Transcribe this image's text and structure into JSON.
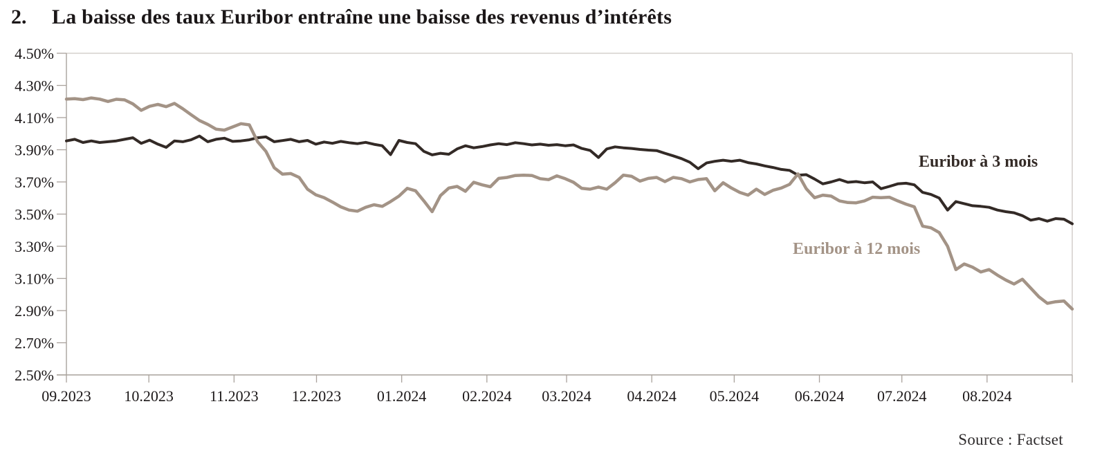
{
  "title": {
    "number": "2.",
    "text": "La baisse des taux Euribor entraîne une baisse des revenus d’intérêts"
  },
  "source": "Source : Factset",
  "annotations": {
    "label_3m": "Euribor à 3 mois",
    "label_12m": "Euribor à 12 mois"
  },
  "colors": {
    "series_3m": "#332a26",
    "series_12m": "#a39386",
    "axis": "#a9a29c",
    "border": "#ccc7c2",
    "text": "#1b1718"
  },
  "chart_data": {
    "type": "line",
    "title": "La baisse des taux Euribor entraîne une baisse des revenus d’intérêts",
    "legend_position": "inline-labels",
    "grid": false,
    "y_axis": {
      "tick_labels": [
        "4.50%",
        "4.30%",
        "4.10%",
        "3.90%",
        "3.70%",
        "3.50%",
        "3.30%",
        "3.10%",
        "2.90%",
        "2.70%",
        "2.50%"
      ],
      "tick_values": [
        4.5,
        4.3,
        4.1,
        3.9,
        3.7,
        3.5,
        3.3,
        3.1,
        2.9,
        2.7,
        2.5
      ],
      "min": 2.5,
      "max": 4.5
    },
    "x_axis": {
      "tick_labels": [
        "09.2023",
        "10.2023",
        "11.2023",
        "12.2023",
        "01.2024",
        "02.2024",
        "03.2024",
        "04.2024",
        "05.2024",
        "06.2024",
        "07.2024",
        "08.2024"
      ],
      "month_day_offsets": [
        0,
        30,
        61,
        91,
        122,
        153,
        182,
        213,
        243,
        274,
        304,
        335,
        366
      ],
      "span_days": 366
    },
    "sampling": {
      "points": 122,
      "step_days": 3,
      "start": "09.2023",
      "end": "08.2024"
    },
    "series": [
      {
        "name": "Euribor à 3 mois",
        "color": "#332a26",
        "unit": "%",
        "values": [
          3.955,
          3.965,
          3.945,
          3.955,
          3.945,
          3.95,
          3.955,
          3.965,
          3.975,
          3.94,
          3.96,
          3.935,
          3.915,
          3.955,
          3.95,
          3.962,
          3.985,
          3.95,
          3.965,
          3.972,
          3.952,
          3.955,
          3.962,
          3.975,
          3.98,
          3.95,
          3.957,
          3.965,
          3.95,
          3.958,
          3.935,
          3.948,
          3.94,
          3.952,
          3.944,
          3.938,
          3.946,
          3.934,
          3.925,
          3.87,
          3.958,
          3.945,
          3.938,
          3.89,
          3.868,
          3.878,
          3.872,
          3.905,
          3.925,
          3.912,
          3.92,
          3.93,
          3.938,
          3.932,
          3.944,
          3.938,
          3.93,
          3.935,
          3.928,
          3.932,
          3.925,
          3.93,
          3.908,
          3.896,
          3.852,
          3.905,
          3.918,
          3.912,
          3.908,
          3.902,
          3.898,
          3.895,
          3.878,
          3.862,
          3.845,
          3.822,
          3.782,
          3.818,
          3.828,
          3.835,
          3.828,
          3.835,
          3.82,
          3.812,
          3.8,
          3.79,
          3.778,
          3.772,
          3.742,
          3.745,
          3.718,
          3.688,
          3.7,
          3.715,
          3.698,
          3.702,
          3.695,
          3.7,
          3.658,
          3.672,
          3.688,
          3.692,
          3.682,
          3.635,
          3.622,
          3.6,
          3.525,
          3.578,
          3.565,
          3.552,
          3.548,
          3.542,
          3.525,
          3.515,
          3.508,
          3.49,
          3.462,
          3.472,
          3.456,
          3.472,
          3.468,
          3.44
        ]
      },
      {
        "name": "Euribor à 12 mois",
        "color": "#a39386",
        "unit": "%",
        "values": [
          4.215,
          4.218,
          4.212,
          4.222,
          4.215,
          4.2,
          4.214,
          4.21,
          4.185,
          4.145,
          4.17,
          4.182,
          4.168,
          4.188,
          4.155,
          4.118,
          4.082,
          4.058,
          4.028,
          4.022,
          4.042,
          4.062,
          4.055,
          3.95,
          3.89,
          3.788,
          3.748,
          3.752,
          3.728,
          3.655,
          3.62,
          3.602,
          3.575,
          3.545,
          3.525,
          3.518,
          3.542,
          3.558,
          3.548,
          3.578,
          3.612,
          3.66,
          3.645,
          3.582,
          3.515,
          3.615,
          3.662,
          3.672,
          3.642,
          3.698,
          3.682,
          3.67,
          3.722,
          3.728,
          3.74,
          3.742,
          3.74,
          3.72,
          3.714,
          3.738,
          3.72,
          3.698,
          3.66,
          3.655,
          3.668,
          3.655,
          3.695,
          3.742,
          3.735,
          3.705,
          3.722,
          3.728,
          3.702,
          3.728,
          3.72,
          3.7,
          3.715,
          3.72,
          3.645,
          3.695,
          3.662,
          3.635,
          3.618,
          3.655,
          3.622,
          3.648,
          3.662,
          3.685,
          3.75,
          3.658,
          3.602,
          3.618,
          3.612,
          3.582,
          3.572,
          3.57,
          3.582,
          3.605,
          3.602,
          3.605,
          3.582,
          3.562,
          3.545,
          3.425,
          3.415,
          3.385,
          3.3,
          3.155,
          3.19,
          3.17,
          3.14,
          3.155,
          3.12,
          3.09,
          3.065,
          3.095,
          3.04,
          2.985,
          2.945,
          2.955,
          2.96,
          2.91
        ]
      }
    ]
  }
}
